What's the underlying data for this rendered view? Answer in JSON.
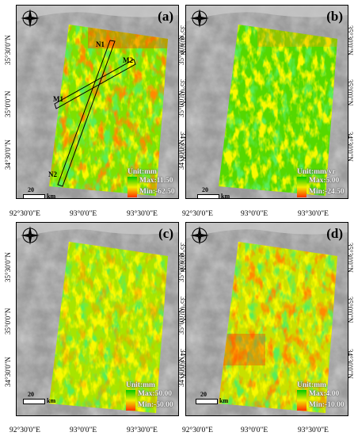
{
  "panels": [
    {
      "id": "a",
      "label": "(a)",
      "unit": "Unit:mm",
      "max": "Max:11.50",
      "min": "Min:-62.50",
      "profiles": [
        "N1",
        "M2",
        "M1",
        "N2"
      ]
    },
    {
      "id": "b",
      "label": "(b)",
      "unit": "Unit:mm/yr",
      "max": "Max:5.00",
      "min": "Min:-24.50"
    },
    {
      "id": "c",
      "label": "(c)",
      "unit": "Unit:mm",
      "max": "Max:50.00",
      "min": "Min:-50.00"
    },
    {
      "id": "d",
      "label": "(d)",
      "unit": "Unit:mm",
      "max": "Max:4.00",
      "min": "Min:-10.00"
    }
  ],
  "scale": {
    "distance": "20",
    "unit": "km"
  },
  "latitudes": [
    "35°30'0\"N",
    "35°0'0\"N",
    "34°30'0\"N"
  ],
  "longitudes": [
    "92°30'0\"E",
    "93°0'0\"E",
    "93°30'0\"E"
  ],
  "colors": {
    "low": "#00c800",
    "mid": "#f0f000",
    "high": "#ff3000",
    "terrain": "#8c8c8c"
  }
}
